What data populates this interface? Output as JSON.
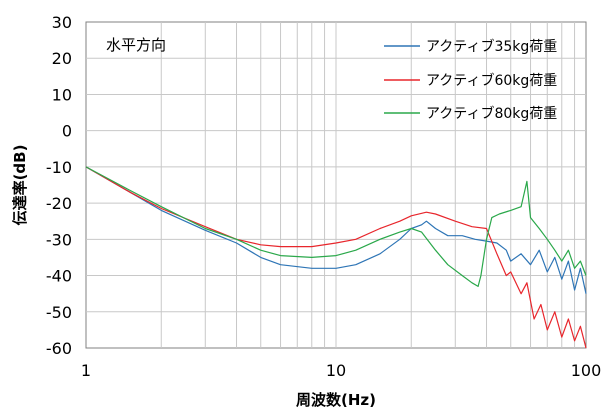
{
  "chart_data": {
    "type": "line",
    "annotation": "水平方向",
    "xlabel": "周波数(Hz)",
    "ylabel": "伝達率(dB)",
    "x_scale": "log",
    "xlim": [
      1,
      100
    ],
    "ylim": [
      -60,
      30
    ],
    "x_ticks": [
      1,
      10,
      100
    ],
    "x_tick_labels": [
      "1",
      "10",
      "100"
    ],
    "y_ticks": [
      30,
      20,
      10,
      0,
      -10,
      -20,
      -30,
      -40,
      -50,
      -60
    ],
    "y_tick_labels": [
      "30",
      "20",
      "10",
      "0",
      "-10",
      "-20",
      "-30",
      "-40",
      "-50",
      "-60"
    ],
    "grid": true,
    "legend_position": "top-right",
    "series": [
      {
        "name": "アクティブ35kg荷重",
        "color": "#2e75b6",
        "points": [
          [
            1,
            -10
          ],
          [
            1.5,
            -17
          ],
          [
            2,
            -22
          ],
          [
            3,
            -27.5
          ],
          [
            4,
            -31
          ],
          [
            5,
            -35
          ],
          [
            6,
            -37
          ],
          [
            8,
            -38
          ],
          [
            10,
            -38
          ],
          [
            12,
            -37
          ],
          [
            15,
            -34
          ],
          [
            18,
            -30
          ],
          [
            20,
            -27
          ],
          [
            22,
            -26
          ],
          [
            23,
            -25
          ],
          [
            25,
            -27
          ],
          [
            28,
            -29
          ],
          [
            32,
            -29
          ],
          [
            36,
            -30
          ],
          [
            40,
            -30.5
          ],
          [
            44,
            -31
          ],
          [
            48,
            -33
          ],
          [
            50,
            -36
          ],
          [
            55,
            -34
          ],
          [
            60,
            -37
          ],
          [
            65,
            -33
          ],
          [
            70,
            -39
          ],
          [
            75,
            -35
          ],
          [
            80,
            -41
          ],
          [
            85,
            -36
          ],
          [
            90,
            -44
          ],
          [
            95,
            -38
          ],
          [
            100,
            -45
          ]
        ]
      },
      {
        "name": "アクティブ60kg荷重",
        "color": "#e8262c",
        "points": [
          [
            1,
            -10
          ],
          [
            1.5,
            -17
          ],
          [
            2,
            -21.5
          ],
          [
            3,
            -26.5
          ],
          [
            4,
            -30
          ],
          [
            5,
            -31.5
          ],
          [
            6,
            -32
          ],
          [
            8,
            -32
          ],
          [
            10,
            -31
          ],
          [
            12,
            -30
          ],
          [
            15,
            -27
          ],
          [
            18,
            -25
          ],
          [
            20,
            -23.5
          ],
          [
            23,
            -22.5
          ],
          [
            25,
            -23
          ],
          [
            30,
            -25
          ],
          [
            35,
            -26.5
          ],
          [
            40,
            -27
          ],
          [
            44,
            -34
          ],
          [
            48,
            -40
          ],
          [
            50,
            -39
          ],
          [
            55,
            -45
          ],
          [
            58,
            -42
          ],
          [
            62,
            -52
          ],
          [
            66,
            -48
          ],
          [
            70,
            -55
          ],
          [
            75,
            -50
          ],
          [
            80,
            -57
          ],
          [
            85,
            -52
          ],
          [
            90,
            -58
          ],
          [
            95,
            -54
          ],
          [
            100,
            -60
          ]
        ]
      },
      {
        "name": "アクティブ80kg荷重",
        "color": "#2aa84a",
        "points": [
          [
            1,
            -10
          ],
          [
            1.5,
            -16.5
          ],
          [
            2,
            -21
          ],
          [
            3,
            -27
          ],
          [
            4,
            -30
          ],
          [
            5,
            -33
          ],
          [
            6,
            -34.5
          ],
          [
            8,
            -35
          ],
          [
            10,
            -34.5
          ],
          [
            12,
            -33
          ],
          [
            15,
            -30
          ],
          [
            18,
            -28
          ],
          [
            20,
            -27
          ],
          [
            22,
            -28
          ],
          [
            25,
            -33
          ],
          [
            28,
            -37
          ],
          [
            32,
            -40
          ],
          [
            35,
            -42
          ],
          [
            37,
            -43
          ],
          [
            38,
            -40
          ],
          [
            40,
            -30
          ],
          [
            42,
            -24
          ],
          [
            45,
            -23
          ],
          [
            50,
            -22
          ],
          [
            55,
            -21
          ],
          [
            58,
            -14
          ],
          [
            60,
            -24
          ],
          [
            65,
            -27
          ],
          [
            70,
            -30
          ],
          [
            75,
            -33
          ],
          [
            80,
            -36
          ],
          [
            85,
            -33
          ],
          [
            90,
            -38
          ],
          [
            95,
            -36
          ],
          [
            100,
            -40
          ]
        ]
      }
    ]
  }
}
